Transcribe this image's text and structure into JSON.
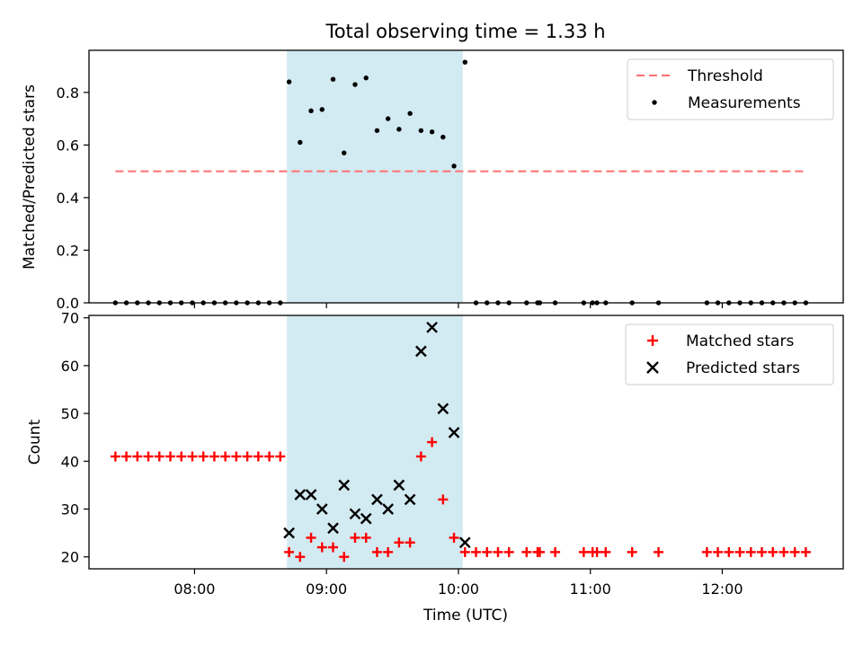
{
  "figure": {
    "title": "Total observing time = 1.33 h",
    "shaded_color": "#add8e6",
    "threshold_color": "#ff6f6f",
    "matched_color": "#ff0000",
    "predicted_color": "#000000",
    "measurement_color": "#000000"
  },
  "chart_data": [
    {
      "type": "scatter",
      "panel": "top",
      "title": "Total observing time = 1.33 h",
      "ylabel": "Matched/Predicted stars",
      "xlabel": "",
      "xlim": [
        "07:12",
        "12:55"
      ],
      "ylim": [
        0,
        0.96
      ],
      "yticks": [
        "0.0",
        "0.2",
        "0.4",
        "0.6",
        "0.8"
      ],
      "shaded_interval": [
        "08:42",
        "10:02"
      ],
      "legend_position": "upper right",
      "legend": [
        {
          "label": "Threshold",
          "marker": "dashed-line"
        },
        {
          "label": "Measurements",
          "marker": "dot"
        }
      ],
      "threshold": {
        "name": "Threshold",
        "y": 0.5,
        "x": [
          "07:24",
          "12:38"
        ]
      },
      "series": [
        {
          "name": "Measurements",
          "points": [
            [
              "07:24",
              0.0
            ],
            [
              "07:29",
              0.0
            ],
            [
              "07:34",
              0.0
            ],
            [
              "07:39",
              0.0
            ],
            [
              "07:44",
              0.0
            ],
            [
              "07:49",
              0.0
            ],
            [
              "07:54",
              0.0
            ],
            [
              "07:59",
              0.0
            ],
            [
              "08:04",
              0.0
            ],
            [
              "08:09",
              0.0
            ],
            [
              "08:14",
              0.0
            ],
            [
              "08:19",
              0.0
            ],
            [
              "08:24",
              0.0
            ],
            [
              "08:29",
              0.0
            ],
            [
              "08:34",
              0.0
            ],
            [
              "08:39",
              0.0
            ],
            [
              "08:43",
              0.84
            ],
            [
              "08:48",
              0.61
            ],
            [
              "08:53",
              0.73
            ],
            [
              "08:58",
              0.735
            ],
            [
              "09:03",
              0.85
            ],
            [
              "09:08",
              0.57
            ],
            [
              "09:13",
              0.83
            ],
            [
              "09:18",
              0.855
            ],
            [
              "09:23",
              0.655
            ],
            [
              "09:28",
              0.7
            ],
            [
              "09:33",
              0.66
            ],
            [
              "09:38",
              0.72
            ],
            [
              "09:43",
              0.655
            ],
            [
              "09:48",
              0.65
            ],
            [
              "09:53",
              0.63
            ],
            [
              "09:58",
              0.52
            ],
            [
              "10:03",
              0.915
            ],
            [
              "10:08",
              0.0
            ],
            [
              "10:13",
              0.0
            ],
            [
              "10:18",
              0.0
            ],
            [
              "10:23",
              0.0
            ],
            [
              "10:31",
              0.0
            ],
            [
              "10:36",
              0.0
            ],
            [
              "10:37",
              0.0
            ],
            [
              "10:44",
              0.0
            ],
            [
              "10:57",
              0.0
            ],
            [
              "11:01",
              0.0
            ],
            [
              "11:03",
              0.0
            ],
            [
              "11:07",
              0.0
            ],
            [
              "11:19",
              0.0
            ],
            [
              "11:31",
              0.0
            ],
            [
              "11:53",
              0.0
            ],
            [
              "11:58",
              0.0
            ],
            [
              "12:03",
              0.0
            ],
            [
              "12:08",
              0.0
            ],
            [
              "12:13",
              0.0
            ],
            [
              "12:18",
              0.0
            ],
            [
              "12:23",
              0.0
            ],
            [
              "12:28",
              0.0
            ],
            [
              "12:33",
              0.0
            ],
            [
              "12:38",
              0.0
            ]
          ]
        }
      ]
    },
    {
      "type": "scatter",
      "panel": "bottom",
      "title": "",
      "ylabel": "Count",
      "xlabel": "Time (UTC)",
      "xlim": [
        "07:12",
        "12:55"
      ],
      "ylim": [
        17.5,
        70.5
      ],
      "yticks": [
        "20",
        "30",
        "40",
        "50",
        "60",
        "70"
      ],
      "xticks": [
        "08:00",
        "09:00",
        "10:00",
        "11:00",
        "12:00"
      ],
      "shaded_interval": [
        "08:42",
        "10:02"
      ],
      "legend_position": "upper right",
      "legend": [
        {
          "label": "Matched stars",
          "marker": "plus"
        },
        {
          "label": "Predicted stars",
          "marker": "x"
        }
      ],
      "series": [
        {
          "name": "Matched stars",
          "marker": "plus",
          "points": [
            [
              "07:24",
              41
            ],
            [
              "07:29",
              41
            ],
            [
              "07:34",
              41
            ],
            [
              "07:39",
              41
            ],
            [
              "07:44",
              41
            ],
            [
              "07:49",
              41
            ],
            [
              "07:54",
              41
            ],
            [
              "07:59",
              41
            ],
            [
              "08:04",
              41
            ],
            [
              "08:09",
              41
            ],
            [
              "08:14",
              41
            ],
            [
              "08:19",
              41
            ],
            [
              "08:24",
              41
            ],
            [
              "08:29",
              41
            ],
            [
              "08:34",
              41
            ],
            [
              "08:39",
              41
            ],
            [
              "08:43",
              21
            ],
            [
              "08:48",
              20
            ],
            [
              "08:53",
              24
            ],
            [
              "08:58",
              22
            ],
            [
              "09:03",
              22
            ],
            [
              "09:08",
              20
            ],
            [
              "09:13",
              24
            ],
            [
              "09:18",
              24
            ],
            [
              "09:23",
              21
            ],
            [
              "09:28",
              21
            ],
            [
              "09:33",
              23
            ],
            [
              "09:38",
              23
            ],
            [
              "09:43",
              41
            ],
            [
              "09:48",
              44
            ],
            [
              "09:53",
              32
            ],
            [
              "09:58",
              24
            ],
            [
              "10:03",
              21
            ],
            [
              "10:08",
              21
            ],
            [
              "10:13",
              21
            ],
            [
              "10:18",
              21
            ],
            [
              "10:23",
              21
            ],
            [
              "10:31",
              21
            ],
            [
              "10:36",
              21
            ],
            [
              "10:37",
              21
            ],
            [
              "10:44",
              21
            ],
            [
              "10:57",
              21
            ],
            [
              "11:01",
              21
            ],
            [
              "11:03",
              21
            ],
            [
              "11:07",
              21
            ],
            [
              "11:19",
              21
            ],
            [
              "11:31",
              21
            ],
            [
              "11:53",
              21
            ],
            [
              "11:58",
              21
            ],
            [
              "12:03",
              21
            ],
            [
              "12:08",
              21
            ],
            [
              "12:13",
              21
            ],
            [
              "12:18",
              21
            ],
            [
              "12:23",
              21
            ],
            [
              "12:28",
              21
            ],
            [
              "12:33",
              21
            ],
            [
              "12:38",
              21
            ]
          ]
        },
        {
          "name": "Predicted stars",
          "marker": "x",
          "points": [
            [
              "08:43",
              25
            ],
            [
              "08:48",
              33
            ],
            [
              "08:53",
              33
            ],
            [
              "08:58",
              30
            ],
            [
              "09:03",
              26
            ],
            [
              "09:08",
              35
            ],
            [
              "09:13",
              29
            ],
            [
              "09:18",
              28
            ],
            [
              "09:23",
              32
            ],
            [
              "09:28",
              30
            ],
            [
              "09:33",
              35
            ],
            [
              "09:38",
              32
            ],
            [
              "09:43",
              63
            ],
            [
              "09:48",
              68
            ],
            [
              "09:53",
              51
            ],
            [
              "09:58",
              46
            ],
            [
              "10:03",
              23
            ]
          ]
        }
      ]
    }
  ]
}
